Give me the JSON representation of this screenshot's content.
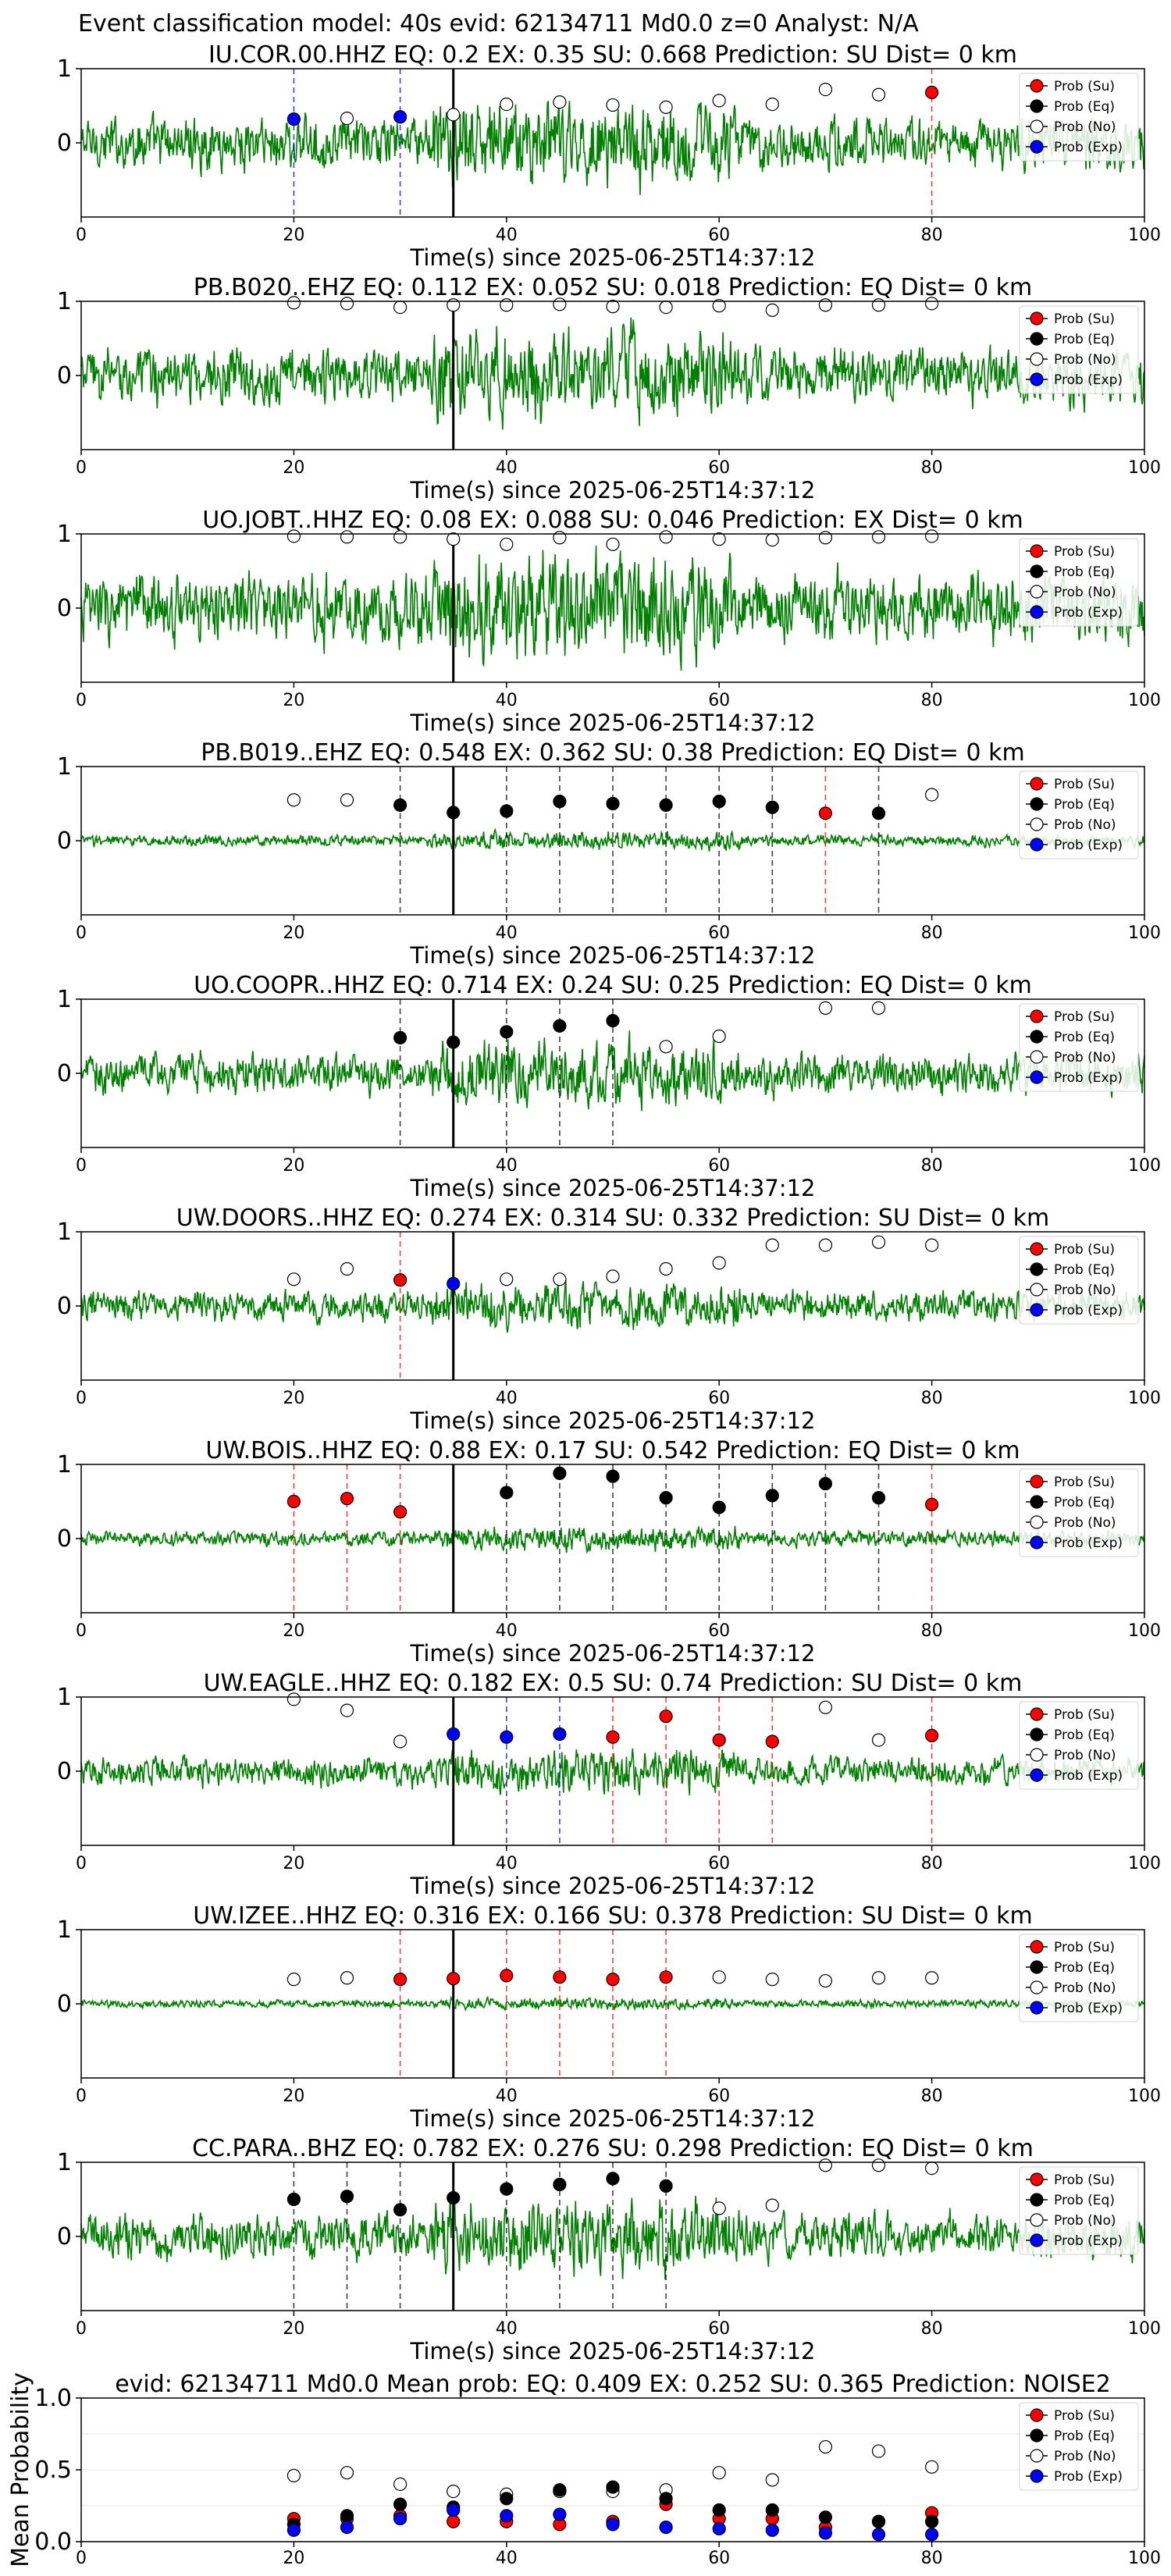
{
  "figure": {
    "suptitle": "Event classification model: 40s evid: 62134711 Md0.0 z=0 Analyst: N/A"
  },
  "legend_labels": [
    "Prob (Su)",
    "Prob (Eq)",
    "Prob (No)",
    "Prob (Exp)"
  ],
  "colors": {
    "waveform": "#008000",
    "su": "#ff0000",
    "eq": "#000000",
    "no": "#ffffff",
    "exp": "#0000ff",
    "vline_su": "#ff0000",
    "vline_eq": "#000000",
    "vline_exp": "#0000ff",
    "p_arrival": "#000000"
  },
  "chart_data": [
    {
      "type": "line",
      "title": "IU.COR.00.HHZ   EQ: 0.2   EX: 0.35   SU: 0.668   Prediction: SU    Dist= 0 km",
      "xlabel": "Time(s) since 2025-06-25T14:37:12",
      "ylabel": "",
      "xlim": [
        0,
        100
      ],
      "ylim": [
        -1,
        1
      ],
      "xticks": [
        0,
        20,
        40,
        60,
        80,
        100
      ],
      "yticks": [
        0,
        1
      ],
      "grid": true,
      "legend": "top-right",
      "amplitude": 0.42,
      "p_arrival": 35,
      "markers": [
        {
          "x": 20,
          "y": 0.32,
          "c": "exp"
        },
        {
          "x": 25,
          "y": 0.33,
          "c": "no"
        },
        {
          "x": 30,
          "y": 0.35,
          "c": "exp"
        },
        {
          "x": 35,
          "y": 0.38,
          "c": "no"
        },
        {
          "x": 40,
          "y": 0.52,
          "c": "no"
        },
        {
          "x": 45,
          "y": 0.55,
          "c": "no"
        },
        {
          "x": 50,
          "y": 0.51,
          "c": "no"
        },
        {
          "x": 55,
          "y": 0.48,
          "c": "no"
        },
        {
          "x": 60,
          "y": 0.57,
          "c": "no"
        },
        {
          "x": 65,
          "y": 0.52,
          "c": "no"
        },
        {
          "x": 70,
          "y": 0.72,
          "c": "no"
        },
        {
          "x": 75,
          "y": 0.65,
          "c": "no"
        },
        {
          "x": 80,
          "y": 0.68,
          "c": "su"
        }
      ]
    },
    {
      "type": "line",
      "title": "PB.B020..EHZ   EQ: 0.112  EX: 0.052  SU: 0.018   Prediction: EQ    Dist= 0 km",
      "xlabel": "Time(s) since 2025-06-25T14:37:12",
      "ylabel": "",
      "xlim": [
        0,
        100
      ],
      "ylim": [
        -1,
        1
      ],
      "xticks": [
        0,
        20,
        40,
        60,
        80,
        100
      ],
      "yticks": [
        0,
        1
      ],
      "grid": true,
      "legend": "top-right",
      "amplitude": 0.45,
      "p_arrival": 35,
      "markers": [
        {
          "x": 20,
          "y": 0.98,
          "c": "no"
        },
        {
          "x": 25,
          "y": 0.97,
          "c": "no"
        },
        {
          "x": 30,
          "y": 0.92,
          "c": "no"
        },
        {
          "x": 35,
          "y": 0.95,
          "c": "no"
        },
        {
          "x": 40,
          "y": 0.95,
          "c": "no"
        },
        {
          "x": 45,
          "y": 0.96,
          "c": "no"
        },
        {
          "x": 50,
          "y": 0.93,
          "c": "no"
        },
        {
          "x": 55,
          "y": 0.92,
          "c": "no"
        },
        {
          "x": 60,
          "y": 0.94,
          "c": "no"
        },
        {
          "x": 65,
          "y": 0.88,
          "c": "no"
        },
        {
          "x": 70,
          "y": 0.95,
          "c": "no"
        },
        {
          "x": 75,
          "y": 0.95,
          "c": "no"
        },
        {
          "x": 80,
          "y": 0.97,
          "c": "no"
        }
      ]
    },
    {
      "type": "line",
      "title": "UO.JOBT..HHZ   EQ: 0.08  EX: 0.088  SU: 0.046   Prediction: EX    Dist= 0 km",
      "xlabel": "Time(s) since 2025-06-25T14:37:12",
      "ylabel": "",
      "xlim": [
        0,
        100
      ],
      "ylim": [
        -1,
        1
      ],
      "xticks": [
        0,
        20,
        40,
        60,
        80,
        100
      ],
      "yticks": [
        0,
        1
      ],
      "grid": true,
      "legend": "top-right",
      "amplitude": 0.55,
      "p_arrival": 35,
      "markers": [
        {
          "x": 20,
          "y": 0.97,
          "c": "no"
        },
        {
          "x": 25,
          "y": 0.96,
          "c": "no"
        },
        {
          "x": 30,
          "y": 0.96,
          "c": "no"
        },
        {
          "x": 35,
          "y": 0.93,
          "c": "no"
        },
        {
          "x": 40,
          "y": 0.86,
          "c": "no"
        },
        {
          "x": 45,
          "y": 0.95,
          "c": "no"
        },
        {
          "x": 50,
          "y": 0.86,
          "c": "no"
        },
        {
          "x": 55,
          "y": 0.96,
          "c": "no"
        },
        {
          "x": 60,
          "y": 0.93,
          "c": "no"
        },
        {
          "x": 65,
          "y": 0.92,
          "c": "no"
        },
        {
          "x": 70,
          "y": 0.95,
          "c": "no"
        },
        {
          "x": 75,
          "y": 0.96,
          "c": "no"
        },
        {
          "x": 80,
          "y": 0.97,
          "c": "no"
        }
      ]
    },
    {
      "type": "line",
      "title": "PB.B019..EHZ   EQ: 0.548  EX: 0.362  SU: 0.38   Prediction: EQ    Dist= 0 km",
      "xlabel": "Time(s) since 2025-06-25T14:37:12",
      "ylabel": "",
      "xlim": [
        0,
        100
      ],
      "ylim": [
        -1,
        1
      ],
      "xticks": [
        0,
        20,
        40,
        60,
        80,
        100
      ],
      "yticks": [
        0,
        1
      ],
      "grid": true,
      "legend": "top-right",
      "amplitude": 0.09,
      "p_arrival": 35,
      "markers": [
        {
          "x": 20,
          "y": 0.55,
          "c": "no"
        },
        {
          "x": 25,
          "y": 0.55,
          "c": "no"
        },
        {
          "x": 30,
          "y": 0.48,
          "c": "eq"
        },
        {
          "x": 35,
          "y": 0.38,
          "c": "eq"
        },
        {
          "x": 40,
          "y": 0.4,
          "c": "eq"
        },
        {
          "x": 45,
          "y": 0.53,
          "c": "eq"
        },
        {
          "x": 50,
          "y": 0.5,
          "c": "eq"
        },
        {
          "x": 55,
          "y": 0.48,
          "c": "eq"
        },
        {
          "x": 60,
          "y": 0.53,
          "c": "eq"
        },
        {
          "x": 65,
          "y": 0.45,
          "c": "eq"
        },
        {
          "x": 70,
          "y": 0.37,
          "c": "su"
        },
        {
          "x": 75,
          "y": 0.37,
          "c": "eq"
        },
        {
          "x": 80,
          "y": 0.62,
          "c": "no"
        }
      ]
    },
    {
      "type": "line",
      "title": "UO.COOPR..HHZ   EQ: 0.714  EX: 0.24  SU: 0.25   Prediction: EQ    Dist= 0 km",
      "xlabel": "Time(s) since 2025-06-25T14:37:12",
      "ylabel": "",
      "xlim": [
        0,
        100
      ],
      "ylim": [
        -1,
        1
      ],
      "xticks": [
        0,
        20,
        40,
        60,
        80,
        100
      ],
      "yticks": [
        0,
        1
      ],
      "grid": true,
      "legend": "top-right",
      "amplitude": 0.32,
      "p_arrival": 35,
      "markers": [
        {
          "x": 30,
          "y": 0.48,
          "c": "eq"
        },
        {
          "x": 35,
          "y": 0.42,
          "c": "eq"
        },
        {
          "x": 40,
          "y": 0.56,
          "c": "eq"
        },
        {
          "x": 45,
          "y": 0.64,
          "c": "eq"
        },
        {
          "x": 50,
          "y": 0.71,
          "c": "eq"
        },
        {
          "x": 55,
          "y": 0.36,
          "c": "no"
        },
        {
          "x": 60,
          "y": 0.5,
          "c": "no"
        },
        {
          "x": 70,
          "y": 0.88,
          "c": "no"
        },
        {
          "x": 75,
          "y": 0.88,
          "c": "no"
        }
      ]
    },
    {
      "type": "line",
      "title": "UW.DOORS..HHZ   EQ: 0.274  EX: 0.314  SU: 0.332   Prediction: SU    Dist= 0 km",
      "xlabel": "Time(s) since 2025-06-25T14:37:12",
      "ylabel": "",
      "xlim": [
        0,
        100
      ],
      "ylim": [
        -1,
        1
      ],
      "xticks": [
        0,
        20,
        40,
        60,
        80,
        100
      ],
      "yticks": [
        0,
        1
      ],
      "grid": true,
      "legend": "top-right",
      "amplitude": 0.24,
      "p_arrival": 35,
      "markers": [
        {
          "x": 20,
          "y": 0.36,
          "c": "no"
        },
        {
          "x": 25,
          "y": 0.5,
          "c": "no"
        },
        {
          "x": 30,
          "y": 0.35,
          "c": "su"
        },
        {
          "x": 35,
          "y": 0.3,
          "c": "exp"
        },
        {
          "x": 40,
          "y": 0.36,
          "c": "no"
        },
        {
          "x": 45,
          "y": 0.36,
          "c": "no"
        },
        {
          "x": 50,
          "y": 0.4,
          "c": "no"
        },
        {
          "x": 55,
          "y": 0.5,
          "c": "no"
        },
        {
          "x": 60,
          "y": 0.58,
          "c": "no"
        },
        {
          "x": 65,
          "y": 0.82,
          "c": "no"
        },
        {
          "x": 70,
          "y": 0.82,
          "c": "no"
        },
        {
          "x": 75,
          "y": 0.86,
          "c": "no"
        },
        {
          "x": 80,
          "y": 0.82,
          "c": "no"
        }
      ]
    },
    {
      "type": "line",
      "title": "UW.BOIS..HHZ   EQ: 0.88  EX: 0.17  SU: 0.542   Prediction: EQ    Dist= 0 km",
      "xlabel": "Time(s) since 2025-06-25T14:37:12",
      "ylabel": "",
      "xlim": [
        0,
        100
      ],
      "ylim": [
        -1,
        1
      ],
      "xticks": [
        0,
        20,
        40,
        60,
        80,
        100
      ],
      "yticks": [
        0,
        1
      ],
      "grid": true,
      "legend": "top-right",
      "amplitude": 0.12,
      "p_arrival": 35,
      "markers": [
        {
          "x": 20,
          "y": 0.5,
          "c": "su"
        },
        {
          "x": 25,
          "y": 0.54,
          "c": "su"
        },
        {
          "x": 30,
          "y": 0.36,
          "c": "su"
        },
        {
          "x": 40,
          "y": 0.62,
          "c": "eq"
        },
        {
          "x": 45,
          "y": 0.88,
          "c": "eq"
        },
        {
          "x": 50,
          "y": 0.84,
          "c": "eq"
        },
        {
          "x": 55,
          "y": 0.55,
          "c": "eq"
        },
        {
          "x": 60,
          "y": 0.42,
          "c": "eq"
        },
        {
          "x": 65,
          "y": 0.58,
          "c": "eq"
        },
        {
          "x": 70,
          "y": 0.74,
          "c": "eq"
        },
        {
          "x": 75,
          "y": 0.55,
          "c": "eq"
        },
        {
          "x": 80,
          "y": 0.46,
          "c": "su"
        }
      ]
    },
    {
      "type": "line",
      "title": "UW.EAGLE..HHZ   EQ: 0.182  EX: 0.5  SU: 0.74   Prediction: SU    Dist= 0 km",
      "xlabel": "Time(s) since 2025-06-25T14:37:12",
      "ylabel": "",
      "xlim": [
        0,
        100
      ],
      "ylim": [
        -1,
        1
      ],
      "xticks": [
        0,
        20,
        40,
        60,
        80,
        100
      ],
      "yticks": [
        0,
        1
      ],
      "grid": true,
      "legend": "top-right",
      "amplitude": 0.22,
      "p_arrival": 35,
      "markers": [
        {
          "x": 20,
          "y": 0.97,
          "c": "no"
        },
        {
          "x": 25,
          "y": 0.82,
          "c": "no"
        },
        {
          "x": 30,
          "y": 0.4,
          "c": "no"
        },
        {
          "x": 35,
          "y": 0.5,
          "c": "exp"
        },
        {
          "x": 40,
          "y": 0.46,
          "c": "exp"
        },
        {
          "x": 45,
          "y": 0.5,
          "c": "exp"
        },
        {
          "x": 50,
          "y": 0.46,
          "c": "su"
        },
        {
          "x": 55,
          "y": 0.74,
          "c": "su"
        },
        {
          "x": 60,
          "y": 0.42,
          "c": "su"
        },
        {
          "x": 65,
          "y": 0.4,
          "c": "su"
        },
        {
          "x": 70,
          "y": 0.86,
          "c": "no"
        },
        {
          "x": 75,
          "y": 0.42,
          "c": "no"
        },
        {
          "x": 80,
          "y": 0.48,
          "c": "su"
        }
      ]
    },
    {
      "type": "line",
      "title": "UW.IZEE..HHZ   EQ: 0.316  EX: 0.166  SU: 0.378   Prediction: SU    Dist= 0 km",
      "xlabel": "Time(s) since 2025-06-25T14:37:12",
      "ylabel": "",
      "xlim": [
        0,
        100
      ],
      "ylim": [
        -1,
        1
      ],
      "xticks": [
        0,
        20,
        40,
        60,
        80,
        100
      ],
      "yticks": [
        0,
        1
      ],
      "grid": true,
      "legend": "top-right",
      "amplitude": 0.06,
      "p_arrival": 35,
      "markers": [
        {
          "x": 20,
          "y": 0.33,
          "c": "no"
        },
        {
          "x": 25,
          "y": 0.35,
          "c": "no"
        },
        {
          "x": 30,
          "y": 0.33,
          "c": "su"
        },
        {
          "x": 35,
          "y": 0.34,
          "c": "su"
        },
        {
          "x": 40,
          "y": 0.38,
          "c": "su"
        },
        {
          "x": 45,
          "y": 0.36,
          "c": "su"
        },
        {
          "x": 50,
          "y": 0.33,
          "c": "su"
        },
        {
          "x": 55,
          "y": 0.36,
          "c": "su"
        },
        {
          "x": 60,
          "y": 0.36,
          "c": "no"
        },
        {
          "x": 65,
          "y": 0.33,
          "c": "no"
        },
        {
          "x": 70,
          "y": 0.31,
          "c": "no"
        },
        {
          "x": 75,
          "y": 0.35,
          "c": "no"
        },
        {
          "x": 80,
          "y": 0.35,
          "c": "no"
        }
      ]
    },
    {
      "type": "line",
      "title": "CC.PARA..BHZ   EQ: 0.782  EX: 0.276  SU: 0.298   Prediction: EQ    Dist= 0 km",
      "xlabel": "Time(s) since 2025-06-25T14:37:12",
      "ylabel": "",
      "xlim": [
        0,
        100
      ],
      "ylim": [
        -1,
        1
      ],
      "xticks": [
        0,
        20,
        40,
        60,
        80,
        100
      ],
      "yticks": [
        0,
        1
      ],
      "grid": true,
      "legend": "top-right",
      "amplitude": 0.36,
      "p_arrival": 35,
      "markers": [
        {
          "x": 20,
          "y": 0.5,
          "c": "eq"
        },
        {
          "x": 25,
          "y": 0.54,
          "c": "eq"
        },
        {
          "x": 30,
          "y": 0.36,
          "c": "eq"
        },
        {
          "x": 35,
          "y": 0.52,
          "c": "eq"
        },
        {
          "x": 40,
          "y": 0.64,
          "c": "eq"
        },
        {
          "x": 45,
          "y": 0.7,
          "c": "eq"
        },
        {
          "x": 50,
          "y": 0.78,
          "c": "eq"
        },
        {
          "x": 55,
          "y": 0.68,
          "c": "eq"
        },
        {
          "x": 60,
          "y": 0.38,
          "c": "no"
        },
        {
          "x": 65,
          "y": 0.42,
          "c": "no"
        },
        {
          "x": 70,
          "y": 0.96,
          "c": "no"
        },
        {
          "x": 75,
          "y": 0.96,
          "c": "no"
        },
        {
          "x": 80,
          "y": 0.92,
          "c": "no"
        }
      ]
    },
    {
      "type": "scatter",
      "title": "evid: 62134711   Md0.0    Mean prob:    EQ: 0.409   EX: 0.252   SU: 0.365    Prediction: NOISE2",
      "xlabel": "",
      "ylabel": "Mean Probability",
      "xlim": [
        0,
        100
      ],
      "ylim": [
        0,
        1
      ],
      "xticks": [
        0,
        20,
        40,
        60,
        80,
        100
      ],
      "yticks": [
        0.0,
        0.5,
        1.0
      ],
      "grid": true,
      "legend": "top-right",
      "x": [
        20,
        25,
        30,
        35,
        40,
        45,
        50,
        55,
        60,
        65,
        70,
        75,
        80
      ],
      "series": [
        {
          "name": "Prob (Su)",
          "c": "su",
          "values": [
            0.16,
            0.16,
            0.18,
            0.14,
            0.14,
            0.12,
            0.14,
            0.26,
            0.16,
            0.16,
            0.1,
            0.14,
            0.2
          ]
        },
        {
          "name": "Prob (Eq)",
          "c": "eq",
          "values": [
            0.12,
            0.18,
            0.26,
            0.24,
            0.3,
            0.36,
            0.38,
            0.3,
            0.22,
            0.22,
            0.17,
            0.14,
            0.14
          ]
        },
        {
          "name": "Prob (No)",
          "c": "no",
          "values": [
            0.46,
            0.48,
            0.4,
            0.35,
            0.33,
            0.35,
            0.35,
            0.36,
            0.48,
            0.43,
            0.66,
            0.63,
            0.52
          ]
        },
        {
          "name": "Prob (Exp)",
          "c": "exp",
          "values": [
            0.08,
            0.1,
            0.16,
            0.22,
            0.18,
            0.19,
            0.12,
            0.1,
            0.09,
            0.08,
            0.06,
            0.05,
            0.05
          ]
        }
      ]
    }
  ]
}
